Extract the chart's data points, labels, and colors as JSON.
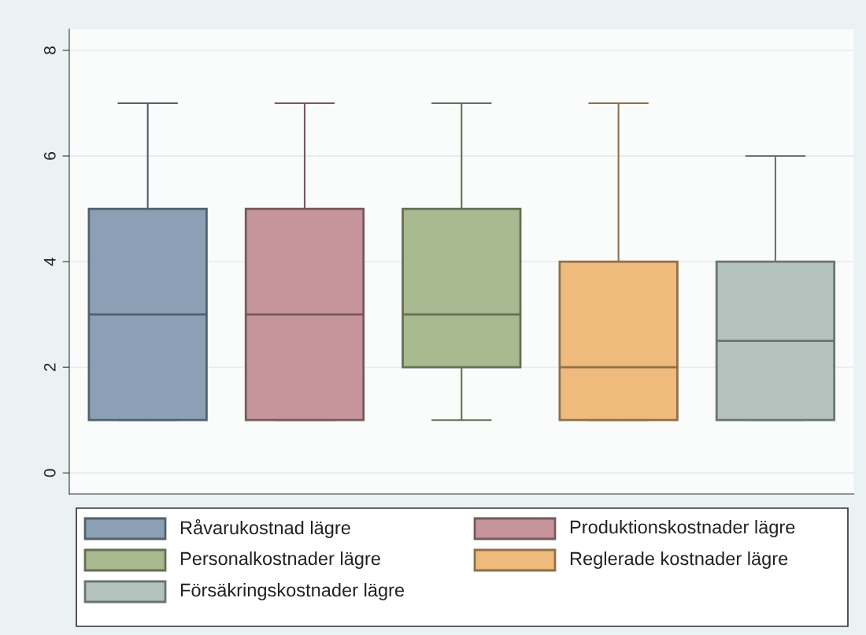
{
  "chart_data": {
    "type": "box",
    "categories": [
      null
    ],
    "ylim": [
      -0.4,
      8.4
    ],
    "yticks": [
      0,
      2,
      4,
      6,
      8
    ],
    "grid": "y",
    "legend": "bottom",
    "series": [
      {
        "name": "Råvarukostnad lägre",
        "color": "#8ba0b5",
        "boxes": [
          {
            "low": 1,
            "q1": 1,
            "median": 3,
            "q3": 5,
            "high": 7
          }
        ]
      },
      {
        "name": "Produktionskostnader lägre",
        "color": "#c5959b",
        "boxes": [
          {
            "low": 1,
            "q1": 1,
            "median": 3,
            "q3": 5,
            "high": 7
          }
        ]
      },
      {
        "name": "Personalkostnader lägre",
        "color": "#a9b990",
        "boxes": [
          {
            "low": 1,
            "q1": 2,
            "median": 3,
            "q3": 5,
            "high": 7
          }
        ]
      },
      {
        "name": "Reglerade kostnader lägre",
        "color": "#efbb7c",
        "boxes": [
          {
            "low": 1,
            "q1": 1,
            "median": 2,
            "q3": 4,
            "high": 7
          }
        ]
      },
      {
        "name": "Försäkringskostnader lägre",
        "color": "#b3c2bc",
        "boxes": [
          {
            "low": 1,
            "q1": 1,
            "median": 2.5,
            "q3": 4,
            "high": 6
          }
        ]
      }
    ]
  }
}
